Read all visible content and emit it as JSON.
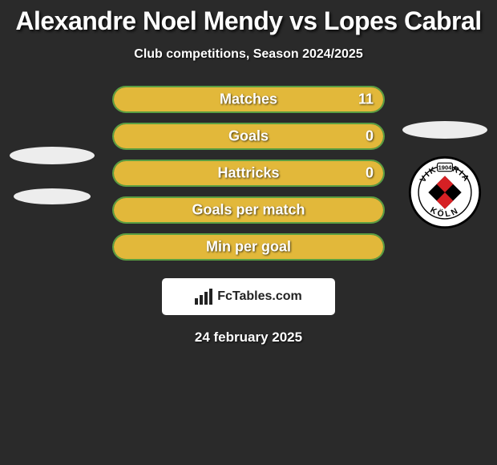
{
  "title": "Alexandre Noel Mendy vs Lopes Cabral",
  "subtitle": "Club competitions, Season 2024/2025",
  "date_text": "24 february 2025",
  "banner_text": "FcTables.com",
  "colors": {
    "left_bar": "#5a9e42",
    "right_bar": "#e2b83a",
    "bg": "#2a2a2a",
    "text": "#ffffff"
  },
  "bars": [
    {
      "label": "Matches",
      "left_value": null,
      "right_value": "11",
      "right_fill_pct": 100
    },
    {
      "label": "Goals",
      "left_value": null,
      "right_value": "0",
      "right_fill_pct": 100
    },
    {
      "label": "Hattricks",
      "left_value": null,
      "right_value": "0",
      "right_fill_pct": 100
    },
    {
      "label": "Goals per match",
      "left_value": null,
      "right_value": null,
      "right_fill_pct": 100
    },
    {
      "label": "Min per goal",
      "left_value": null,
      "right_value": null,
      "right_fill_pct": 100
    }
  ],
  "right_club": {
    "year": "1904",
    "name_top": "VIKTORIA",
    "name_bottom": "KÖLN"
  }
}
